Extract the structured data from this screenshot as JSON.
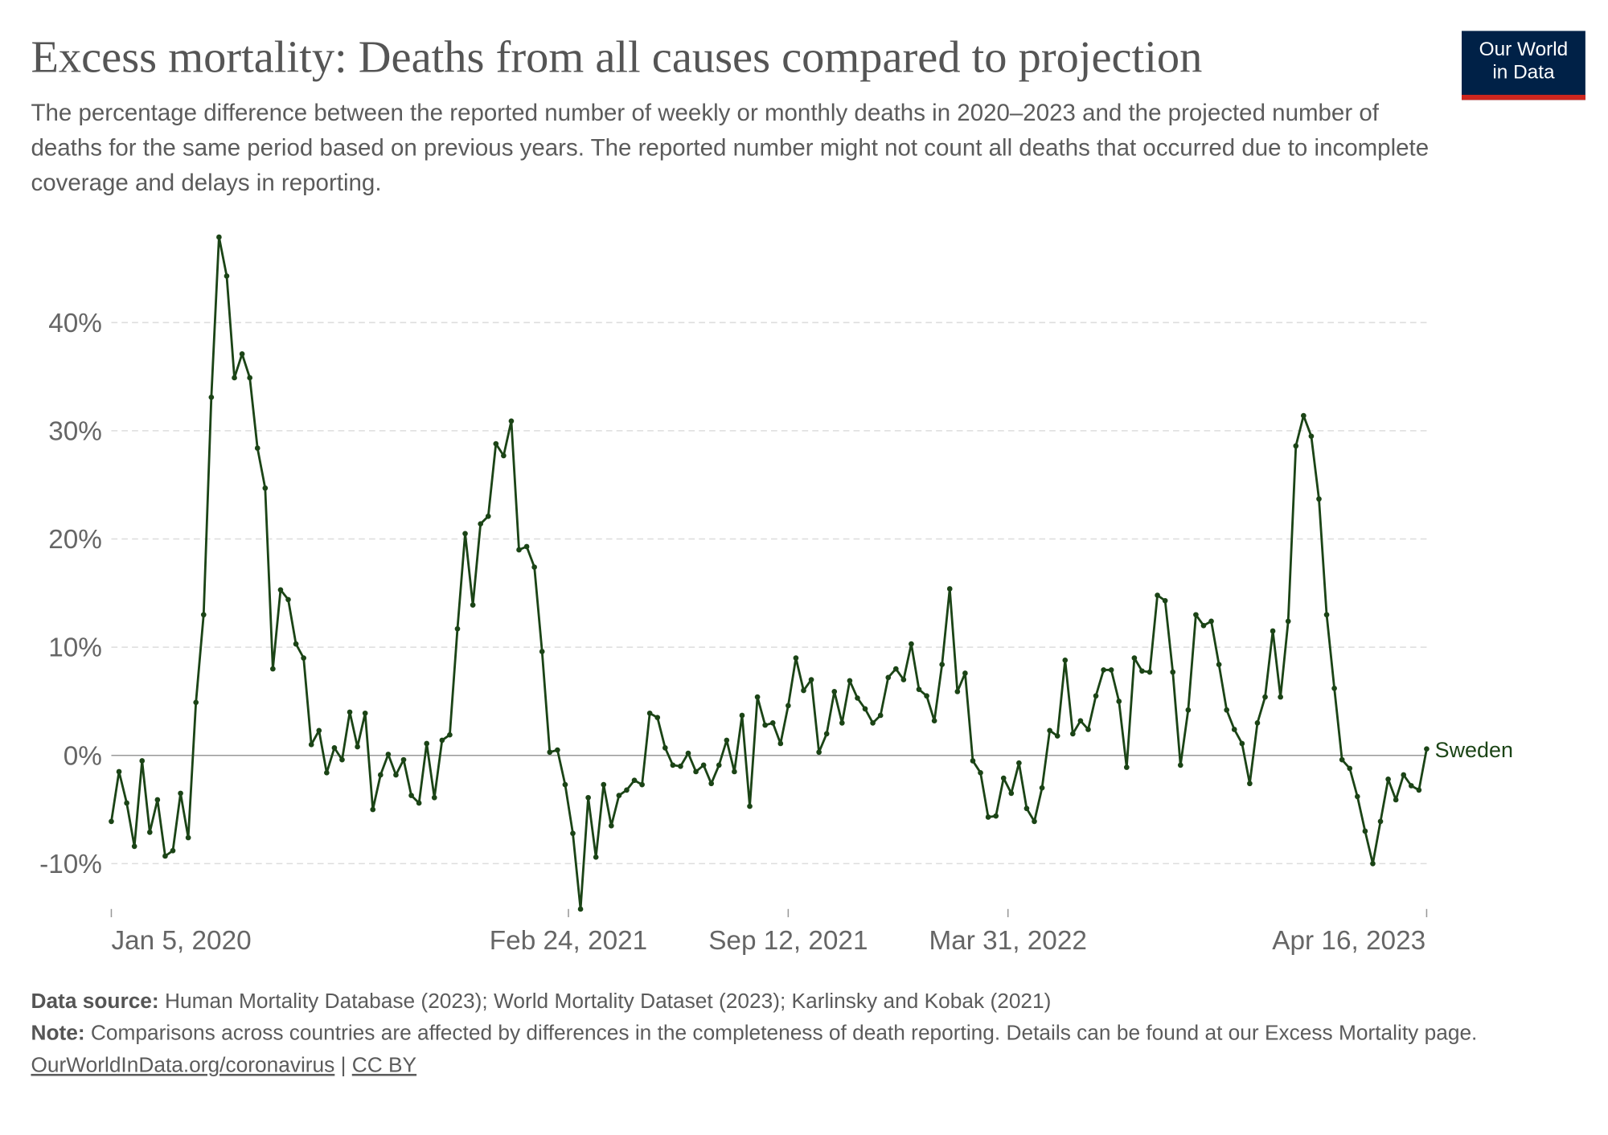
{
  "header": {
    "title": "Excess mortality: Deaths from all causes compared to projection",
    "subtitle": "The percentage difference between the reported number of weekly or monthly deaths in 2020–2023 and the projected number of deaths for the same period based on previous years. The reported number might not count all deaths that occurred due to incomplete coverage and delays in reporting.",
    "logo_line1": "Our World",
    "logo_line2": "in Data"
  },
  "chart_data": {
    "type": "line",
    "title": "Excess mortality: Deaths from all causes compared to projection",
    "xlabel": "",
    "ylabel": "",
    "x_start": "2020-01-05",
    "x_end": "2023-04-16",
    "x_interval": "weekly",
    "ylim": [
      -14.5,
      48
    ],
    "y_ticks": [
      {
        "v": -10,
        "label": "-10%"
      },
      {
        "v": 0,
        "label": "0%"
      },
      {
        "v": 10,
        "label": "10%"
      },
      {
        "v": 20,
        "label": "20%"
      },
      {
        "v": 30,
        "label": "30%"
      },
      {
        "v": 40,
        "label": "40%"
      }
    ],
    "x_ticks": [
      {
        "day": 0,
        "label": "Jan 5, 2020"
      },
      {
        "day": 416,
        "label": "Feb 24, 2021"
      },
      {
        "day": 616,
        "label": "Sep 12, 2021"
      },
      {
        "day": 816,
        "label": "Mar 31, 2022"
      },
      {
        "day": 1197,
        "label": "Apr 16, 2023"
      }
    ],
    "grid": true,
    "legend": "end-label",
    "colors": {
      "line": "#1b4416",
      "grid": "#dddddd",
      "zero": "#999999"
    },
    "series": [
      {
        "name": "Sweden",
        "values": [
          -6.1,
          -1.5,
          -4.4,
          -8.4,
          -0.5,
          -7.1,
          -4.1,
          -9.3,
          -8.8,
          -3.5,
          -7.6,
          4.9,
          13.0,
          33.1,
          47.9,
          44.3,
          34.9,
          37.1,
          34.9,
          28.4,
          24.7,
          8.0,
          15.3,
          14.4,
          10.3,
          9.0,
          1.0,
          2.3,
          -1.6,
          0.7,
          -0.4,
          4.0,
          0.8,
          3.9,
          -5.0,
          -1.8,
          0.1,
          -1.8,
          -0.4,
          -3.7,
          -4.4,
          1.1,
          -3.9,
          1.4,
          1.9,
          11.7,
          20.5,
          13.9,
          21.4,
          22.1,
          28.8,
          27.7,
          30.9,
          19.0,
          19.3,
          17.4,
          9.6,
          0.3,
          0.5,
          -2.7,
          -7.2,
          -14.2,
          -3.9,
          -9.4,
          -2.7,
          -6.5,
          -3.7,
          -3.2,
          -2.3,
          -2.7,
          3.9,
          3.5,
          0.7,
          -0.9,
          -1.0,
          0.2,
          -1.5,
          -0.9,
          -2.6,
          -0.9,
          1.4,
          -1.5,
          3.7,
          -4.7,
          5.4,
          2.8,
          3.0,
          1.1,
          4.6,
          9.0,
          6.0,
          7.0,
          0.3,
          2.0,
          5.9,
          3.0,
          6.9,
          5.3,
          4.3,
          3.0,
          3.7,
          7.2,
          8.0,
          7.0,
          10.3,
          6.1,
          5.5,
          3.2,
          8.4,
          15.4,
          5.9,
          7.6,
          -0.5,
          -1.6,
          -5.7,
          -5.6,
          -2.1,
          -3.5,
          -0.7,
          -4.9,
          -6.1,
          -3.0,
          2.3,
          1.8,
          8.8,
          2.0,
          3.2,
          2.4,
          5.5,
          7.9,
          7.9,
          5.0,
          -1.1,
          9.0,
          7.8,
          7.7,
          14.8,
          14.3,
          7.7,
          -0.9,
          4.2,
          13.0,
          12.0,
          12.4,
          8.4,
          4.2,
          2.4,
          1.1,
          -2.6,
          3.0,
          5.4,
          11.5,
          5.4,
          12.4,
          28.6,
          31.4,
          29.5,
          23.7,
          13.0,
          6.2,
          -0.4,
          -1.2,
          -3.8,
          -7.0,
          -10.0,
          -6.1,
          -2.2,
          -4.1,
          -1.8,
          -2.8,
          -3.2,
          0.6
        ]
      }
    ]
  },
  "footer": {
    "source_label": "Data source:",
    "source_text": " Human Mortality Database (2023); World Mortality Dataset (2023); Karlinsky and Kobak (2021)",
    "note_label": "Note:",
    "note_text": " Comparisons across countries are affected by differences in the completeness of death reporting. Details can be found at our Excess Mortality page.",
    "link": "OurWorldInData.org/coronavirus",
    "separator": " | ",
    "license": "CC BY"
  }
}
